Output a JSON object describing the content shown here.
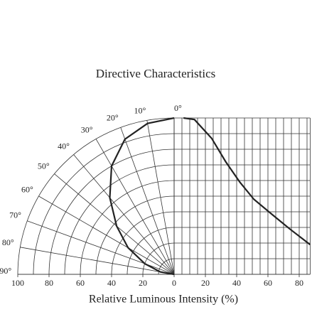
{
  "chart_data": {
    "type": "polar",
    "title": "Directive Characteristics",
    "xlabel": "Relative Luminous Intensity  (%)",
    "rlim": [
      0,
      100
    ],
    "left_ticks": [
      100,
      80,
      60,
      40,
      20,
      0
    ],
    "right_ticks": [
      20,
      40,
      60,
      80
    ],
    "right_xlim": [
      0,
      87
    ],
    "ylim": [
      0,
      100
    ],
    "angle_ticks": [
      {
        "value": 0,
        "label": "0°"
      },
      {
        "value": 10,
        "label": "10°"
      },
      {
        "value": 20,
        "label": "20°"
      },
      {
        "value": 30,
        "label": "30°"
      },
      {
        "value": 40,
        "label": "40°"
      },
      {
        "value": 50,
        "label": "50°"
      },
      {
        "value": 60,
        "label": "60°"
      },
      {
        "value": 70,
        "label": "70°"
      },
      {
        "value": 80,
        "label": "80°"
      },
      {
        "value": 90,
        "label": "90°"
      }
    ],
    "series": [
      {
        "angles": [
          0,
          10,
          20,
          30,
          40,
          50,
          60,
          70,
          80,
          90
        ],
        "values": [
          100,
          98,
          92,
          80,
          64,
          48,
          34,
          20,
          9,
          0
        ]
      },
      {
        "x": [
          6,
          13,
          24,
          33,
          42,
          51,
          63,
          74,
          87
        ],
        "values": [
          100,
          99,
          87,
          72,
          59,
          48,
          38,
          29,
          19
        ]
      }
    ]
  }
}
